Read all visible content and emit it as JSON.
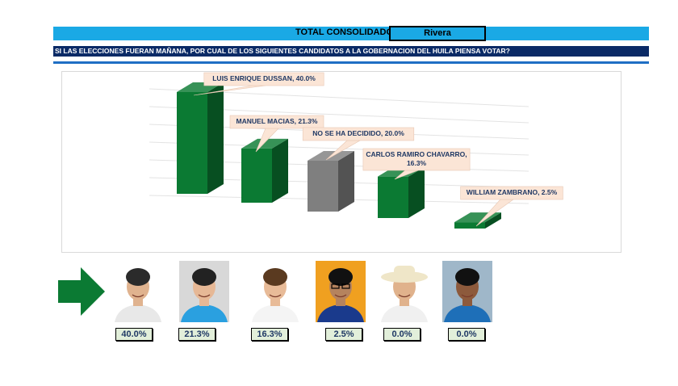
{
  "header": {
    "label": "TOTAL CONSOLIDADO",
    "municipality": "Rivera"
  },
  "question": "SI LAS ELECCIONES FUERAN MAÑANA, POR CUAL DE LOS SIGUIENTES CANDIDATOS A LA GOBERNACION DEL HUILA PIENSA VOTAR?",
  "chart_data": {
    "type": "bar",
    "categories": [
      "LUIS ENRIQUE DUSSAN",
      "MANUEL MACIAS",
      "NO SE HA DECIDIDO",
      "CARLOS RAMIRO CHAVARRO",
      "WILLIAM ZAMBRANO"
    ],
    "values": [
      40.0,
      21.3,
      20.0,
      16.3,
      2.5
    ],
    "data_labels": [
      "LUIS ENRIQUE DUSSAN, 40.0%",
      "MANUEL MACIAS, 21.3%",
      "NO SE HA DECIDIDO, 20.0%",
      "CARLOS RAMIRO CHAVARRO, 16.3%",
      "WILLIAM ZAMBRANO, 2.5%"
    ],
    "bar_colors": [
      "#0b7a33",
      "#0b7a33",
      "#7f7f7f",
      "#0b7a33",
      "#0b7a33"
    ],
    "ylim": [
      0,
      45
    ],
    "grid": true,
    "legend": "none"
  },
  "candidates": [
    {
      "name": "candidate-1",
      "pct": "40.0%",
      "bg": "#ffffff",
      "shirt": "#e8e8e8"
    },
    {
      "name": "candidate-2",
      "pct": "21.3%",
      "bg": "#d8d8d8",
      "shirt": "#2aa0e0"
    },
    {
      "name": "candidate-3",
      "pct": "16.3%",
      "bg": "#ffffff",
      "shirt": "#f4f4f4"
    },
    {
      "name": "candidate-4",
      "pct": "2.5%",
      "bg": "#f0a020",
      "shirt": "#1a3a8c"
    },
    {
      "name": "candidate-5",
      "pct": "0.0%",
      "bg": "#ffffff",
      "shirt": "#f0f0f0"
    },
    {
      "name": "candidate-6",
      "pct": "0.0%",
      "bg": "#9fb7c9",
      "shirt": "#1e6fb8"
    }
  ],
  "colors": {
    "header_bg": "#1aa9e5",
    "question_bg": "#0a2a66",
    "arrow": "#0b7a33",
    "pct_bg": "#e2efda",
    "pct_text": "#1f3864"
  }
}
